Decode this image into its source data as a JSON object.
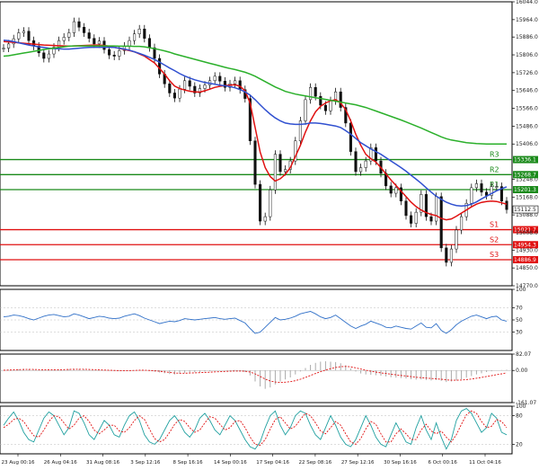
{
  "chart_data": [
    {
      "type": "line",
      "panel": "price",
      "ylim": [
        14770.0,
        16044.0
      ],
      "yticks": [
        "16044.0",
        "15964.0",
        "15886.0",
        "15806.0",
        "15726.0",
        "15646.0",
        "15566.0",
        "15486.0",
        "15406.0",
        "15248.0",
        "15168.0",
        "15088.0",
        "14930.0",
        "14850.0",
        "14770.0"
      ],
      "price_tag": "15112.5",
      "levels": [
        {
          "name": "R3",
          "value": "15336.1",
          "color": "#1a8a1a"
        },
        {
          "name": "R2",
          "value": "15268.7",
          "color": "#1a8a1a"
        },
        {
          "name": "R1",
          "value": "15201.3",
          "color": "#1a8a1a"
        },
        {
          "name": "S1",
          "value": "15021.7",
          "color": "#e01010"
        },
        {
          "name": "S2",
          "value": "14954.3",
          "color": "#e01010"
        },
        {
          "name": "S3",
          "value": "14886.9",
          "color": "#e01010"
        }
      ],
      "overlay_tags": [
        "15008.0"
      ],
      "series": [
        {
          "color": "#111111",
          "values": [
            15836,
            15855,
            15878,
            15905,
            15912,
            15870,
            15845,
            15815,
            15790,
            15810,
            15840,
            15870,
            15885,
            15905,
            15955,
            15930,
            15905,
            15880,
            15855,
            15868,
            15830,
            15805,
            15800,
            15825,
            15845,
            15870,
            15900,
            15922,
            15880,
            15838,
            15790,
            15720,
            15676,
            15635,
            15612,
            15652,
            15690,
            15665,
            15635,
            15655,
            15670,
            15690,
            15710,
            15688,
            15660,
            15676,
            15690,
            15650,
            15610,
            15420,
            15225,
            15060,
            15080,
            15200,
            15360,
            15282,
            15292,
            15330,
            15420,
            15510,
            15605,
            15660,
            15620,
            15580,
            15555,
            15600,
            15640,
            15570,
            15500,
            15372,
            15282,
            15300,
            15330,
            15390,
            15330,
            15275,
            15218,
            15185,
            15210,
            15150,
            15085,
            15050,
            15100,
            15180,
            15080,
            15060,
            15170,
            14940,
            14875,
            14935,
            15020,
            15080,
            15140,
            15210,
            15228,
            15190,
            15175,
            15215,
            15215,
            15150,
            15112
          ]
        },
        {
          "color": "#e01010",
          "values": [
            15866,
            15864,
            15862,
            15860,
            15858,
            15856,
            15854,
            15852,
            15850,
            15849,
            15848,
            15847,
            15846,
            15845,
            15846,
            15847,
            15848,
            15849,
            15850,
            15850,
            15848,
            15845,
            15840,
            15835,
            15830,
            15825,
            15820,
            15810,
            15800,
            15785,
            15770,
            15745,
            15720,
            15690,
            15666,
            15655,
            15648,
            15643,
            15640,
            15639,
            15645,
            15652,
            15660,
            15665,
            15668,
            15670,
            15672,
            15665,
            15645,
            15590,
            15480,
            15370,
            15300,
            15260,
            15240,
            15250,
            15270,
            15300,
            15350,
            15400,
            15460,
            15510,
            15550,
            15575,
            15590,
            15600,
            15605,
            15590,
            15560,
            15510,
            15450,
            15400,
            15360,
            15340,
            15325,
            15300,
            15272,
            15245,
            15220,
            15195,
            15170,
            15145,
            15125,
            15110,
            15098,
            15090,
            15085,
            15072,
            15066,
            15070,
            15082,
            15096,
            15110,
            15124,
            15136,
            15144,
            15148,
            15150,
            15148,
            15142,
            15136
          ]
        },
        {
          "color": "#3050d0",
          "values": [
            15872,
            15870,
            15866,
            15860,
            15855,
            15850,
            15846,
            15842,
            15839,
            15836,
            15834,
            15833,
            15832,
            15832,
            15834,
            15836,
            15838,
            15839,
            15840,
            15840,
            15840,
            15840,
            15839,
            15836,
            15832,
            15827,
            15820,
            15812,
            15804,
            15795,
            15785,
            15773,
            15760,
            15747,
            15735,
            15722,
            15711,
            15702,
            15694,
            15688,
            15682,
            15678,
            15674,
            15670,
            15667,
            15664,
            15658,
            15650,
            15640,
            15625,
            15605,
            15582,
            15560,
            15540,
            15523,
            15510,
            15500,
            15496,
            15494,
            15494,
            15496,
            15500,
            15500,
            15498,
            15495,
            15491,
            15487,
            15480,
            15466,
            15450,
            15431,
            15412,
            15398,
            15384,
            15372,
            15360,
            15345,
            15330,
            15315,
            15300,
            15284,
            15266,
            15248,
            15230,
            15210,
            15190,
            15172,
            15158,
            15145,
            15136,
            15130,
            15128,
            15130,
            15136,
            15146,
            15160,
            15172,
            15184,
            15196,
            15206,
            15214
          ]
        },
        {
          "color": "#2bb02b",
          "values": [
            15800,
            15802,
            15806,
            15810,
            15814,
            15818,
            15822,
            15826,
            15830,
            15833,
            15836,
            15839,
            15842,
            15845,
            15846,
            15846,
            15846,
            15846,
            15846,
            15846,
            15846,
            15846,
            15846,
            15845,
            15845,
            15845,
            15844,
            15844,
            15842,
            15838,
            15834,
            15829,
            15824,
            15818,
            15810,
            15804,
            15798,
            15792,
            15786,
            15780,
            15774,
            15768,
            15762,
            15756,
            15750,
            15745,
            15740,
            15734,
            15728,
            15720,
            15710,
            15698,
            15686,
            15674,
            15662,
            15652,
            15642,
            15636,
            15630,
            15626,
            15622,
            15618,
            15614,
            15610,
            15606,
            15602,
            15598,
            15594,
            15590,
            15586,
            15582,
            15576,
            15570,
            15562,
            15554,
            15546,
            15538,
            15530,
            15522,
            15514,
            15505,
            15496,
            15487,
            15478,
            15468,
            15458,
            15448,
            15438,
            15430,
            15424,
            15420,
            15416,
            15412,
            15410,
            15408,
            15407,
            15406,
            15406,
            15406,
            15406,
            15406
          ]
        }
      ]
    },
    {
      "type": "line",
      "panel": "rsi",
      "ylim": [
        0,
        100
      ],
      "yticks": [
        "100",
        "70",
        "50",
        "30"
      ],
      "series": [
        {
          "color": "#3070c8",
          "values": [
            55,
            56,
            58,
            57,
            55,
            52,
            50,
            53,
            56,
            58,
            59,
            57,
            55,
            56,
            60,
            58,
            55,
            52,
            54,
            56,
            55,
            53,
            52,
            53,
            56,
            58,
            60,
            57,
            53,
            50,
            47,
            44,
            46,
            48,
            47,
            49,
            52,
            51,
            50,
            51,
            52,
            53,
            54,
            52,
            51,
            52,
            53,
            49,
            45,
            36,
            28,
            30,
            38,
            46,
            54,
            50,
            51,
            53,
            56,
            60,
            62,
            64,
            60,
            55,
            52,
            54,
            58,
            52,
            46,
            40,
            36,
            40,
            43,
            48,
            45,
            42,
            38,
            37,
            40,
            38,
            36,
            35,
            40,
            45,
            38,
            37,
            44,
            33,
            28,
            34,
            42,
            48,
            52,
            56,
            58,
            55,
            52,
            55,
            56,
            50,
            48
          ]
        }
      ]
    },
    {
      "type": "bar",
      "panel": "macd",
      "ylim": [
        -161.07,
        82.07
      ],
      "yticks": [
        "82.07",
        "0.00",
        "-161.07"
      ],
      "series": [
        {
          "color": "#aaaaaa",
          "values": [
            2,
            3,
            5,
            6,
            7,
            6,
            4,
            2,
            1,
            2,
            3,
            4,
            5,
            6,
            8,
            7,
            5,
            3,
            1,
            0,
            -1,
            -2,
            -3,
            -2,
            -1,
            0,
            1,
            2,
            0,
            -3,
            -6,
            -10,
            -14,
            -18,
            -20,
            -16,
            -12,
            -10,
            -9,
            -8,
            -6,
            -4,
            -2,
            -1,
            0,
            1,
            2,
            -2,
            -8,
            -25,
            -55,
            -80,
            -92,
            -85,
            -70,
            -55,
            -45,
            -35,
            -20,
            -5,
            12,
            28,
            38,
            44,
            46,
            44,
            42,
            36,
            26,
            10,
            -5,
            -15,
            -20,
            -22,
            -24,
            -26,
            -30,
            -34,
            -36,
            -38,
            -40,
            -44,
            -46,
            -45,
            -48,
            -50,
            -48,
            -52,
            -58,
            -55,
            -50,
            -44,
            -36,
            -28,
            -20,
            -14,
            -8,
            -4,
            -1,
            2,
            4
          ]
        },
        {
          "color": "#e01010",
          "values": [
            1,
            2,
            3,
            4,
            5,
            5,
            5,
            4,
            3,
            3,
            3,
            3,
            4,
            5,
            6,
            6,
            6,
            5,
            4,
            3,
            2,
            1,
            0,
            -1,
            -1,
            -1,
            0,
            1,
            1,
            0,
            -2,
            -4,
            -7,
            -10,
            -13,
            -14,
            -14,
            -13,
            -12,
            -11,
            -10,
            -9,
            -7,
            -6,
            -5,
            -4,
            -3,
            -3,
            -4,
            -8,
            -17,
            -30,
            -43,
            -53,
            -58,
            -60,
            -59,
            -56,
            -51,
            -44,
            -35,
            -25,
            -15,
            -6,
            2,
            9,
            15,
            19,
            20,
            18,
            13,
            7,
            1,
            -4,
            -8,
            -12,
            -15,
            -19,
            -22,
            -25,
            -28,
            -31,
            -34,
            -36,
            -38,
            -40,
            -42,
            -44,
            -47,
            -49,
            -49,
            -48,
            -46,
            -43,
            -39,
            -35,
            -30,
            -26,
            -21,
            -17,
            -12
          ]
        }
      ]
    },
    {
      "type": "line",
      "panel": "stochastic",
      "ylim": [
        0,
        100
      ],
      "yticks": [
        "100",
        "80",
        "20"
      ],
      "x_labels": [
        "23 Aug 00:16",
        "26 Aug 04:16",
        "31 Aug 08:16",
        "3 Sep 12:16",
        "8 Sep 16:16",
        "14 Sep 00:16",
        "17 Sep 04:16",
        "22 Sep 08:16",
        "27 Sep 12:16",
        "30 Sep 16:16",
        "6 Oct 00:16",
        "11 Oct 04:16"
      ],
      "series": [
        {
          "color": "#20a0a0",
          "values": [
            60,
            75,
            88,
            70,
            45,
            30,
            25,
            50,
            75,
            88,
            80,
            60,
            40,
            55,
            90,
            85,
            65,
            40,
            30,
            50,
            70,
            60,
            40,
            35,
            60,
            80,
            88,
            70,
            40,
            25,
            20,
            30,
            50,
            70,
            80,
            65,
            45,
            35,
            50,
            75,
            85,
            70,
            50,
            40,
            60,
            80,
            70,
            50,
            30,
            15,
            10,
            25,
            55,
            80,
            90,
            60,
            40,
            55,
            80,
            90,
            85,
            60,
            40,
            30,
            55,
            80,
            60,
            35,
            20,
            15,
            30,
            55,
            80,
            60,
            35,
            20,
            15,
            40,
            65,
            45,
            25,
            20,
            55,
            80,
            50,
            30,
            65,
            35,
            10,
            30,
            70,
            90,
            95,
            85,
            65,
            45,
            55,
            85,
            75,
            45,
            40
          ]
        },
        {
          "color": "#e01010",
          "values": [
            55,
            62,
            72,
            75,
            68,
            52,
            38,
            35,
            50,
            68,
            80,
            78,
            65,
            52,
            60,
            75,
            80,
            68,
            50,
            42,
            50,
            60,
            60,
            48,
            45,
            55,
            70,
            80,
            72,
            52,
            32,
            25,
            30,
            45,
            62,
            72,
            68,
            55,
            45,
            50,
            65,
            78,
            75,
            62,
            50,
            55,
            68,
            70,
            55,
            35,
            20,
            18,
            30,
            52,
            72,
            78,
            65,
            52,
            58,
            72,
            85,
            80,
            65,
            48,
            42,
            55,
            68,
            60,
            42,
            25,
            20,
            32,
            52,
            68,
            62,
            42,
            25,
            25,
            42,
            52,
            42,
            30,
            30,
            50,
            62,
            48,
            42,
            48,
            35,
            25,
            40,
            62,
            82,
            90,
            85,
            68,
            55,
            58,
            72,
            68,
            55
          ]
        }
      ]
    }
  ]
}
